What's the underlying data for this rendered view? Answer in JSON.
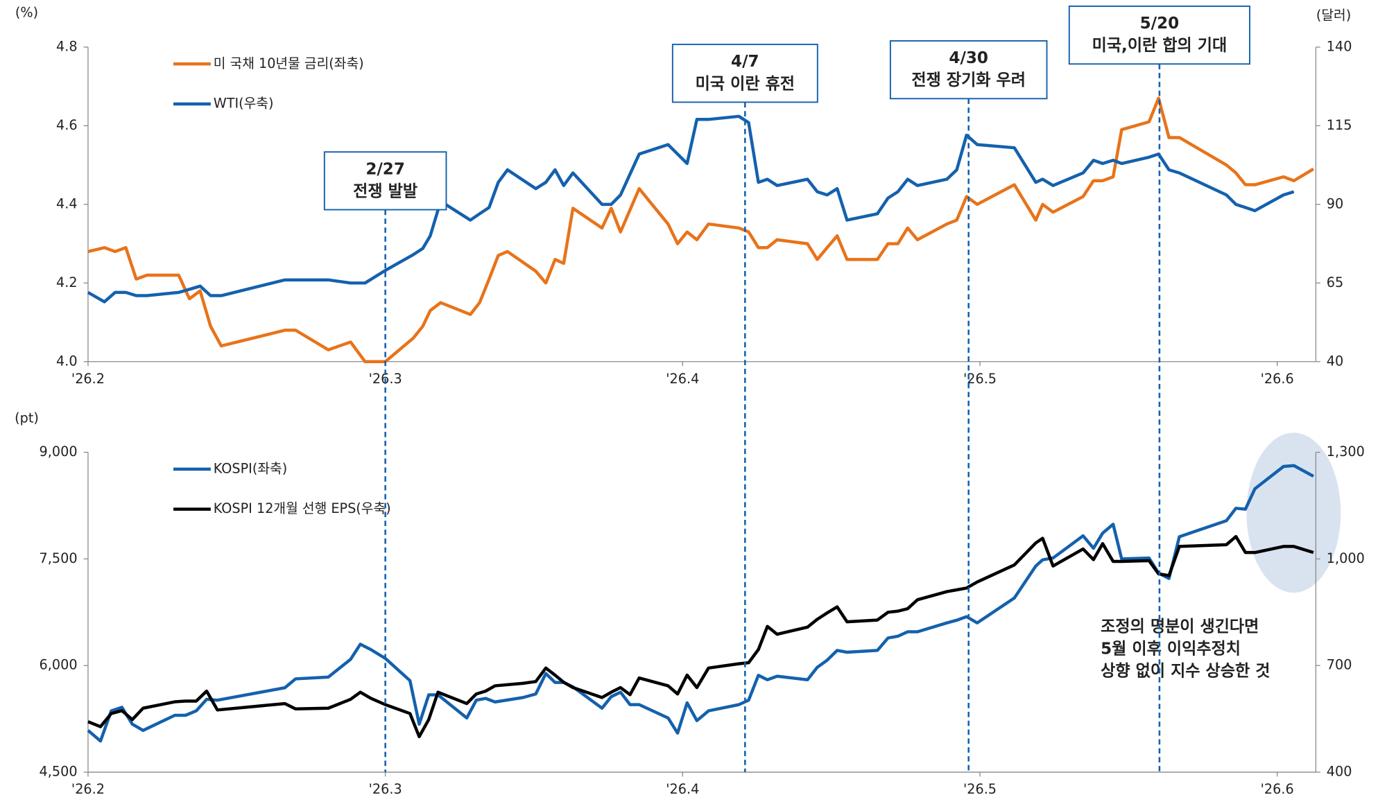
{
  "chart_data": [
    {
      "type": "line",
      "y_unit_label": "(%)",
      "y2_unit_label": "(달러)",
      "legend": "upper left",
      "xlim": [
        2,
        6.13
      ],
      "xticks": [
        {
          "value": 2,
          "label": "'26.2"
        },
        {
          "value": 3,
          "label": "'26.3"
        },
        {
          "value": 4,
          "label": "'26.4"
        },
        {
          "value": 5,
          "label": "'26.5"
        },
        {
          "value": 6,
          "label": "'26.6"
        }
      ],
      "ylim": [
        4,
        4.8
      ],
      "yticks": [
        {
          "value": 4,
          "label": "4.0"
        },
        4.2,
        4.4,
        4.6,
        4.8
      ],
      "y2lim": [
        40,
        140
      ],
      "y2ticks": [
        40,
        65,
        90,
        115,
        140
      ],
      "x": [
        2.0,
        2.055,
        2.091,
        2.127,
        2.162,
        2.198,
        2.305,
        2.341,
        2.377,
        2.412,
        2.448,
        2.662,
        2.698,
        2.808,
        2.883,
        2.932,
        3.0,
        3.094,
        3.126,
        3.151,
        3.186,
        3.286,
        3.317,
        3.349,
        3.38,
        3.411,
        3.506,
        3.54,
        3.571,
        3.6,
        3.631,
        3.729,
        3.76,
        3.791,
        3.854,
        3.951,
        3.983,
        4.015,
        4.048,
        4.087,
        4.189,
        4.222,
        4.255,
        4.285,
        4.318,
        4.42,
        4.453,
        4.486,
        4.52,
        4.553,
        4.655,
        4.691,
        4.724,
        4.757,
        4.79,
        4.889,
        4.922,
        4.955,
        4.991,
        5.116,
        5.188,
        5.211,
        5.246,
        5.347,
        5.382,
        5.413,
        5.448,
        5.477,
        5.569,
        5.601,
        5.636,
        5.671,
        5.829,
        5.861,
        5.893,
        5.925,
        6.021,
        6.056,
        6.122
      ],
      "series": [
        {
          "name": "미 국채 10년물 금리(좌축)",
          "color": "#e8731a",
          "values": [
            4.28,
            4.29,
            4.28,
            4.29,
            4.21,
            4.22,
            4.22,
            4.16,
            4.18,
            4.09,
            4.04,
            4.08,
            4.08,
            4.03,
            4.05,
            4.0,
            4.0,
            4.06,
            4.09,
            4.13,
            4.15,
            4.12,
            4.15,
            4.21,
            4.27,
            4.28,
            4.23,
            4.2,
            4.26,
            4.25,
            4.39,
            4.34,
            4.39,
            4.33,
            4.44,
            4.35,
            4.3,
            4.33,
            4.31,
            4.35,
            4.34,
            4.33,
            4.29,
            4.29,
            4.31,
            4.3,
            4.26,
            4.29,
            4.32,
            4.26,
            4.26,
            4.3,
            4.3,
            4.34,
            4.31,
            4.35,
            4.36,
            4.42,
            4.4,
            4.45,
            4.36,
            4.4,
            4.38,
            4.42,
            4.46,
            4.46,
            4.47,
            4.59,
            4.61,
            4.67,
            4.57,
            4.57,
            4.5,
            4.48,
            4.45,
            4.45,
            4.47,
            4.46,
            4.49
          ]
        },
        {
          "name": "WTI(우축)",
          "color": "#1461ad",
          "axis": "y2",
          "values": [
            62,
            59,
            62,
            62,
            61,
            61,
            62,
            63,
            64,
            61,
            61,
            66,
            66,
            66,
            65,
            65,
            69,
            74,
            76,
            80,
            91,
            85,
            87,
            89,
            97,
            101,
            95,
            97,
            101,
            96,
            100,
            90,
            90,
            93,
            106,
            109,
            106,
            103,
            117,
            117,
            118,
            116,
            97,
            98,
            96,
            98,
            94,
            93,
            95,
            85,
            87,
            92,
            94,
            98,
            96,
            98,
            101,
            112,
            109,
            108,
            97,
            98,
            96,
            100,
            104,
            103,
            104,
            103,
            105,
            106,
            101,
            100,
            93,
            90,
            89,
            88,
            93,
            94,
            null
          ]
        }
      ],
      "events": [
        {
          "x": 3.0,
          "label": [
            "2/27",
            "전쟁 발발"
          ]
        },
        {
          "x": 4.21,
          "label": [
            "4/7",
            "미국 이란 휴전"
          ]
        },
        {
          "x": 4.962,
          "label": [
            "4/30",
            "전쟁 장기화 우려"
          ]
        },
        {
          "x": 5.604,
          "label": [
            "5/20",
            "미국,이란 합의 기대"
          ]
        }
      ]
    },
    {
      "type": "line",
      "y_unit_label": "(pt)",
      "legend": "upper left",
      "xlim": [
        2,
        6.13
      ],
      "xticks": [
        {
          "value": 2,
          "label": "'26.2"
        },
        {
          "value": 3,
          "label": "'26.3"
        },
        {
          "value": 4,
          "label": "'26.4"
        },
        {
          "value": 5,
          "label": "'26.5"
        },
        {
          "value": 6,
          "label": "'26.6"
        }
      ],
      "ylim": [
        4500,
        9000
      ],
      "yticks": [
        {
          "value": 4500,
          "label": "4,500"
        },
        {
          "value": 6000,
          "label": "6,000"
        },
        {
          "value": 7500,
          "label": "7,500"
        },
        {
          "value": 9000,
          "label": "9,000"
        }
      ],
      "y2lim": [
        400,
        1300
      ],
      "y2ticks": [
        400,
        700,
        {
          "value": 1000,
          "label": "1,000"
        },
        {
          "value": 1300,
          "label": "1,300"
        }
      ],
      "x": [
        2.0,
        2.042,
        2.078,
        2.114,
        2.149,
        2.185,
        2.292,
        2.328,
        2.364,
        2.399,
        2.435,
        2.662,
        2.698,
        2.808,
        2.883,
        2.916,
        2.951,
        3.0,
        3.083,
        3.114,
        3.146,
        3.177,
        3.274,
        3.306,
        3.337,
        3.369,
        3.463,
        3.506,
        3.54,
        3.571,
        3.6,
        3.631,
        3.729,
        3.76,
        3.791,
        3.823,
        3.854,
        3.951,
        3.983,
        4.015,
        4.048,
        4.087,
        4.189,
        4.222,
        4.255,
        4.285,
        4.318,
        4.42,
        4.453,
        4.486,
        4.52,
        4.553,
        4.655,
        4.691,
        4.724,
        4.757,
        4.79,
        4.889,
        4.922,
        4.955,
        4.991,
        5.116,
        5.188,
        5.211,
        5.246,
        5.347,
        5.382,
        5.413,
        5.448,
        5.477,
        5.569,
        5.601,
        5.636,
        5.671,
        5.829,
        5.861,
        5.893,
        5.925,
        6.021,
        6.056,
        6.122
      ],
      "series": [
        {
          "name": "KOSPI(좌축)",
          "color": "#1461ad",
          "values": [
            5088,
            4938,
            5363,
            5413,
            5175,
            5088,
            5300,
            5300,
            5363,
            5525,
            5513,
            5688,
            5813,
            5838,
            6088,
            6300,
            6225,
            6100,
            5788,
            5175,
            5588,
            5588,
            5263,
            5513,
            5538,
            5488,
            5550,
            5600,
            5888,
            5763,
            5763,
            5700,
            5400,
            5563,
            5625,
            5450,
            5450,
            5263,
            5050,
            5475,
            5225,
            5363,
            5450,
            5513,
            5863,
            5800,
            5850,
            5800,
            5975,
            6075,
            6213,
            6188,
            6213,
            6388,
            6413,
            6475,
            6475,
            6600,
            6638,
            6688,
            6600,
            6950,
            7400,
            7488,
            7513,
            7825,
            7650,
            7863,
            7988,
            7500,
            7513,
            7300,
            7225,
            7813,
            8038,
            8213,
            8200,
            8488,
            8800,
            8813,
            8663
          ]
        },
        {
          "name": "KOSPI 12개월 선행 EPS(우축)",
          "color": "#000000",
          "axis": "y2",
          "values": [
            542,
            528,
            565,
            573,
            548,
            580,
            598,
            600,
            600,
            628,
            575,
            593,
            578,
            580,
            605,
            625,
            608,
            590,
            565,
            500,
            548,
            625,
            593,
            620,
            628,
            643,
            650,
            655,
            693,
            673,
            653,
            638,
            610,
            625,
            638,
            618,
            665,
            643,
            620,
            673,
            638,
            693,
            705,
            708,
            745,
            810,
            788,
            808,
            830,
            848,
            865,
            823,
            828,
            850,
            853,
            860,
            885,
            908,
            913,
            918,
            935,
            983,
            1045,
            1058,
            980,
            1028,
            998,
            1043,
            993,
            993,
            995,
            958,
            953,
            1035,
            1040,
            1063,
            1018,
            1018,
            1035,
            1035,
            1018
          ]
        }
      ],
      "annotation": [
        "조정의 명분이 생긴다면",
        "5월 이후 이익추정치",
        "상향 없이 지수 상승한 것"
      ],
      "annotation_color": "#1565c0"
    }
  ]
}
